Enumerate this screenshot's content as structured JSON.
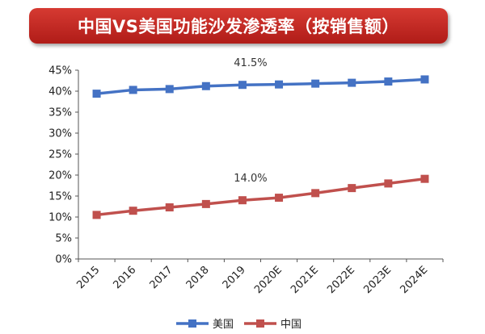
{
  "title": "中国VS美国功能沙发渗透率（按销售额）",
  "chart_data": {
    "type": "line",
    "categories": [
      "2015",
      "2016",
      "2017",
      "2018",
      "2019",
      "2020E",
      "2021E",
      "2022E",
      "2023E",
      "2024E"
    ],
    "series": [
      {
        "name": "美国",
        "color": "#4472C4",
        "values": [
          39.4,
          40.3,
          40.5,
          41.2,
          41.5,
          41.6,
          41.8,
          42.0,
          42.3,
          42.8
        ]
      },
      {
        "name": "中国",
        "color": "#C0504D",
        "values": [
          10.5,
          11.5,
          12.3,
          13.1,
          14.0,
          14.6,
          15.7,
          16.9,
          18.0,
          19.1
        ]
      }
    ],
    "ylim": [
      0,
      45
    ],
    "yticks": [
      "0%",
      "5%",
      "10%",
      "15%",
      "20%",
      "25%",
      "30%",
      "35%",
      "40%",
      "45%"
    ],
    "annotations": [
      {
        "text": "41.5%",
        "series": 0,
        "index": 4
      },
      {
        "text": "14.0%",
        "series": 1,
        "index": 4
      }
    ],
    "legend_position": "bottom",
    "grid": false
  }
}
